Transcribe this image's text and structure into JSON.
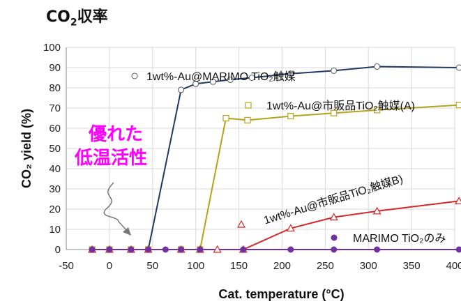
{
  "page": {
    "title_main": "CO",
    "title_sub": "2",
    "title_rest": "収率"
  },
  "chart_data": {
    "type": "line",
    "title": "",
    "xlabel": "Cat. temperature (°C)",
    "ylabel": "CO₂ yield (%)",
    "xlim": [
      -50,
      400
    ],
    "ylim": [
      0,
      100
    ],
    "x_ticks": [
      "-50",
      "0",
      "50",
      "100",
      "150",
      "200",
      "250",
      "300",
      "350",
      "400"
    ],
    "y_ticks": [
      "0",
      "10",
      "20",
      "30",
      "40",
      "50",
      "60",
      "70",
      "80",
      "90",
      "100"
    ],
    "grid": true,
    "series": [
      {
        "name": "1wt%-Au@MARIMO TiO₂触媒",
        "color": "#1f3864",
        "marker": "circle",
        "x": [
          -20,
          0,
          25,
          45,
          83,
          100,
          120,
          140,
          165,
          210,
          260,
          310,
          405
        ],
        "y": [
          0,
          0,
          0,
          0,
          79,
          82,
          83,
          84,
          85,
          87,
          88.5,
          90.5,
          90
        ]
      },
      {
        "name": "1wt%-Au@市販品TiO₂触媒(A)",
        "color": "#b8a21a",
        "marker": "square",
        "x": [
          -20,
          0,
          25,
          45,
          83,
          105,
          135,
          160,
          210,
          260,
          310,
          405
        ],
        "y": [
          0,
          0,
          0,
          0,
          0,
          0,
          65,
          64,
          66,
          67.5,
          69,
          71.5
        ]
      },
      {
        "name": "1wt%-Au@市販品TiO₂触媒B)",
        "color": "#d62728",
        "marker": "triangle",
        "x": [
          -20,
          0,
          25,
          45,
          83,
          105,
          125,
          155,
          210,
          260,
          310,
          405
        ],
        "y": [
          0,
          0,
          0,
          0,
          0,
          0,
          0,
          0,
          10.5,
          16,
          19,
          24
        ]
      },
      {
        "name": "MARIMO TiO₂のみ",
        "color": "#7030a0",
        "marker": "filled-circle",
        "x": [
          -20,
          0,
          25,
          45,
          65,
          83,
          105,
          155,
          210,
          260,
          310,
          405
        ],
        "y": [
          0,
          0,
          0,
          0,
          0,
          0,
          0,
          0,
          0,
          0,
          0,
          0
        ]
      }
    ],
    "annotations": {
      "highlight_line1": "優れた",
      "highlight_line2": "低温活性",
      "highlight_color": "#ff00ff"
    }
  }
}
